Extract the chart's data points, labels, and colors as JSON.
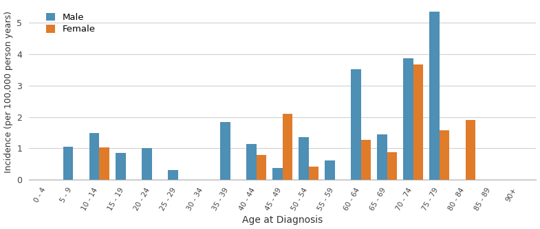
{
  "categories": [
    "0 - 4",
    "5 - 9",
    "10 - 14",
    "15 - 19",
    "20 - 24",
    "25 - 29",
    "30 - 34",
    "35 - 39",
    "40 - 44",
    "45 - 49",
    "50 - 54",
    "55 - 59",
    "60 - 64",
    "65 - 69",
    "70 - 74",
    "75 - 79",
    "80 - 84",
    "85 - 89",
    "90+"
  ],
  "male_values": [
    0.0,
    1.05,
    1.5,
    0.85,
    1.02,
    0.32,
    0.0,
    1.85,
    1.15,
    0.37,
    1.37,
    0.62,
    3.52,
    1.45,
    3.87,
    5.35,
    0.0,
    0.0,
    0.0
  ],
  "female_values": [
    0.0,
    0.0,
    1.03,
    0.0,
    0.0,
    0.0,
    0.0,
    0.0,
    0.8,
    2.1,
    0.42,
    0.0,
    1.27,
    0.87,
    3.67,
    1.57,
    1.9,
    0.0,
    0.0
  ],
  "male_color": "#4d8fb5",
  "female_color": "#e07b2a",
  "xlabel": "Age at Diagnosis",
  "ylabel": "Incidence (per 100,000 person years)",
  "ylim": [
    0,
    5.6
  ],
  "yticks": [
    0,
    1,
    2,
    3,
    4,
    5
  ],
  "bar_width": 0.38,
  "legend_labels": [
    "Male",
    "Female"
  ],
  "background_color": "#ffffff",
  "grid_color": "#d0d0d0"
}
